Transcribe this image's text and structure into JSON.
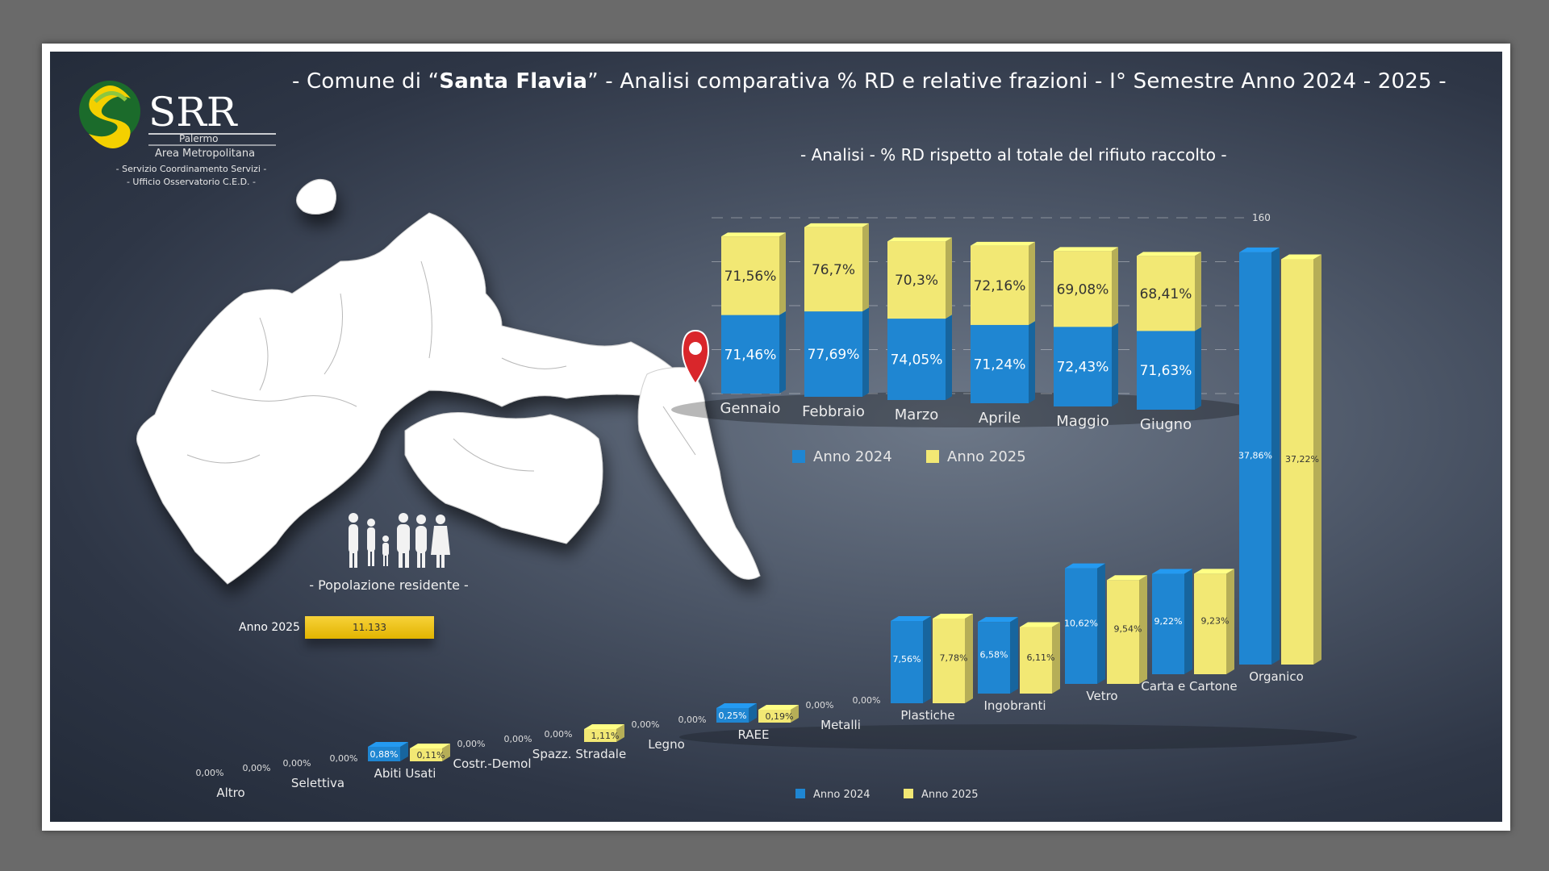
{
  "header": {
    "title_prefix": "- Comune di “",
    "title_city": "Santa Flavia",
    "title_suffix": "” - Analisi comparativa % RD e relative frazioni - I° Semestre Anno 2024 - 2025 -"
  },
  "logo": {
    "name": "SRR",
    "line1": "Palermo",
    "line2": "Area Metropolitana",
    "sub1": "- Servizio Coordinamento Servizi -",
    "sub2": "- Ufficio Osservatorio C.E.D. -"
  },
  "colors": {
    "blue": "#1f86d2",
    "yellow": "#f2e874",
    "panel": "#3a4354"
  },
  "population": {
    "title": "- Popolazione residente -",
    "year": "Anno 2025",
    "value": "11.133"
  },
  "chart_data": [
    {
      "type": "bar",
      "title": "- Analisi - % RD rispetto al totale del rifiuto raccolto -",
      "stacked": true,
      "categories": [
        "Gennaio",
        "Febbraio",
        "Marzo",
        "Aprile",
        "Maggio",
        "Giugno"
      ],
      "series": [
        {
          "name": "Anno 2024",
          "values": [
            71.46,
            77.69,
            74.05,
            71.24,
            72.43,
            71.63
          ],
          "labels": [
            "71,46%",
            "77,69%",
            "74,05%",
            "71,24%",
            "72,43%",
            "71,63%"
          ]
        },
        {
          "name": "Anno 2025",
          "values": [
            71.56,
            76.7,
            70.3,
            72.16,
            69.08,
            68.41
          ],
          "labels": [
            "71,56%",
            "76,7%",
            "70,3%",
            "72,16%",
            "69,08%",
            "68,41%"
          ]
        }
      ],
      "ylim": [
        0,
        160
      ],
      "yticks": [
        "0",
        "40",
        "80",
        "120",
        "160"
      ],
      "legend": "bottom"
    },
    {
      "type": "bar",
      "categories": [
        "Altro",
        "Selettiva",
        "Abiti Usati",
        "Costr.-Demol",
        "Spazz. Stradale",
        "Legno",
        "RAEE",
        "Metalli",
        "Plastiche",
        "Ingobranti",
        "Vetro",
        "Carta e Cartone",
        "Organico"
      ],
      "series": [
        {
          "name": "Anno 2024",
          "values": [
            0,
            0,
            0.88,
            0,
            0,
            0,
            0.25,
            0,
            7.56,
            6.58,
            10.62,
            9.22,
            37.86
          ],
          "labels": [
            "0,00%",
            "0,00%",
            "0,88%",
            "0,00%",
            "0,00%",
            "0,00%",
            "0,25%",
            "0,00%",
            "7,56%",
            "6,58%",
            "10,62%",
            "9,22%",
            "37,86%"
          ]
        },
        {
          "name": "Anno 2025",
          "values": [
            0,
            0,
            0.11,
            0,
            1.11,
            0,
            0.19,
            0,
            7.78,
            6.11,
            9.54,
            9.23,
            37.22
          ],
          "labels": [
            "0,00%",
            "0,00%",
            "0,11%",
            "0,00%",
            "1,11%",
            "0,00%",
            "0,19%",
            "0,00%",
            "7,78%",
            "6,11%",
            "9,54%",
            "9,23%",
            "37,22%"
          ]
        }
      ],
      "legend": "bottom"
    }
  ]
}
